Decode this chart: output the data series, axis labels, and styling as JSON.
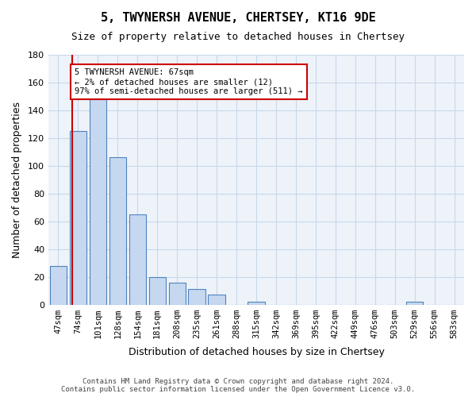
{
  "title": "5, TWYNERSH AVENUE, CHERTSEY, KT16 9DE",
  "subtitle": "Size of property relative to detached houses in Chertsey",
  "xlabel": "Distribution of detached houses by size in Chertsey",
  "ylabel": "Number of detached properties",
  "bar_labels": [
    "47sqm",
    "74sqm",
    "101sqm",
    "128sqm",
    "154sqm",
    "181sqm",
    "208sqm",
    "235sqm",
    "261sqm",
    "288sqm",
    "315sqm",
    "342sqm",
    "369sqm",
    "395sqm",
    "422sqm",
    "449sqm",
    "476sqm",
    "503sqm",
    "529sqm",
    "556sqm",
    "583sqm"
  ],
  "bar_heights": [
    28,
    125,
    150,
    106,
    65,
    20,
    16,
    11,
    7,
    0,
    2,
    0,
    0,
    0,
    0,
    0,
    0,
    0,
    2,
    0,
    0
  ],
  "bar_color": "#c5d8f0",
  "bar_edgecolor": "#4f83bd",
  "grid_color": "#c8d8e8",
  "background_color": "#eef3fa",
  "red_line_x": 0.72,
  "annotation_text": "5 TWYNERSH AVENUE: 67sqm\n← 2% of detached houses are smaller (12)\n97% of semi-detached houses are larger (511) →",
  "annotation_box_color": "#ffffff",
  "annotation_box_edgecolor": "#cc0000",
  "ylim": [
    0,
    180
  ],
  "yticks": [
    0,
    20,
    40,
    60,
    80,
    100,
    120,
    140,
    160,
    180
  ],
  "footer": "Contains HM Land Registry data © Crown copyright and database right 2024.\nContains public sector information licensed under the Open Government Licence v3.0."
}
